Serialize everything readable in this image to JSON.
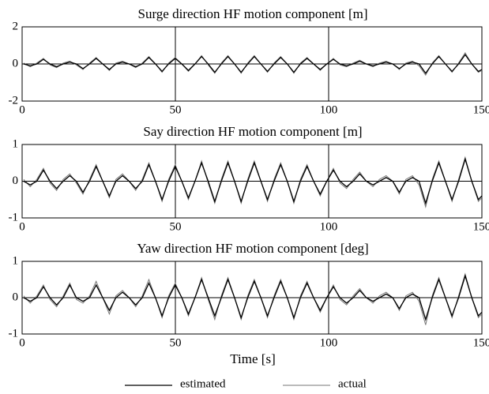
{
  "chart_data": [
    {
      "type": "line",
      "title": "Surge direction HF motion component [m]",
      "x": [
        0.5,
        2.65,
        4.8,
        6.95,
        9.1,
        11.25,
        13.4,
        15.55,
        17.7,
        19.85,
        22,
        24.15,
        26.3,
        28.45,
        30.6,
        32.75,
        34.9,
        37.05,
        39.2,
        41.35,
        43.5,
        45.65,
        47.8,
        49.95,
        52.1,
        54.25,
        56.4,
        58.55,
        60.7,
        62.85,
        65,
        67.15,
        69.3,
        71.45,
        73.6,
        75.75,
        77.9,
        80.05,
        82.2,
        84.35,
        86.5,
        88.65,
        90.8,
        92.95,
        95.1,
        97.25,
        99.4,
        101.55,
        103.7,
        105.85,
        108,
        110.15,
        112.3,
        114.45,
        116.6,
        118.75,
        120.9,
        123.05,
        125.2,
        127.35,
        129.5,
        131.65,
        133.8,
        135.95,
        138.1,
        140.25,
        142.4,
        144.55,
        146.7,
        148.85,
        150
      ],
      "series": [
        {
          "name": "estimated",
          "color": "#000000",
          "values": [
            0,
            -0.1,
            0,
            0.25,
            0,
            -0.15,
            0,
            0.1,
            0,
            -0.25,
            0,
            0.3,
            0,
            -0.3,
            0,
            0.1,
            0,
            -0.15,
            0,
            0.35,
            0,
            -0.4,
            0,
            0.3,
            0,
            -0.35,
            0,
            0.4,
            0,
            -0.45,
            0,
            0.4,
            0,
            -0.45,
            0,
            0.4,
            0,
            -0.4,
            0,
            0.35,
            0,
            -0.45,
            0,
            0.3,
            0,
            -0.3,
            0,
            0.25,
            0,
            -0.1,
            0,
            0.15,
            0,
            -0.1,
            0,
            0.1,
            0,
            -0.25,
            0,
            0.1,
            0,
            -0.5,
            0,
            0.4,
            0,
            -0.4,
            0,
            0.5,
            0,
            -0.4,
            -0.3
          ]
        },
        {
          "name": "actual",
          "color": "#777777",
          "values": [
            0.05,
            -0.15,
            0.05,
            0.3,
            -0.05,
            -0.2,
            0.05,
            0.15,
            -0.05,
            -0.3,
            0.05,
            0.35,
            0,
            -0.35,
            0.05,
            0.15,
            0,
            -0.2,
            0.05,
            0.4,
            0,
            -0.45,
            0.05,
            0.35,
            0,
            -0.4,
            0,
            0.45,
            -0.05,
            -0.5,
            0.05,
            0.45,
            0,
            -0.5,
            0.05,
            0.45,
            0,
            -0.45,
            0.05,
            0.4,
            0,
            -0.5,
            0.05,
            0.35,
            0,
            -0.35,
            0,
            0.3,
            -0.05,
            -0.15,
            0.05,
            0.2,
            0,
            -0.15,
            0.05,
            0.15,
            0,
            -0.3,
            0.05,
            0.15,
            -0.1,
            -0.6,
            0.05,
            0.45,
            0,
            -0.45,
            0.05,
            0.6,
            0,
            -0.45,
            -0.35
          ]
        }
      ],
      "xlim": [
        0,
        150
      ],
      "xticks": [
        0,
        50,
        100,
        150
      ],
      "ylim": [
        -2,
        2
      ],
      "yticks": [
        -2,
        0,
        2
      ],
      "grid": true
    },
    {
      "type": "line",
      "title": "Say direction HF motion component [m]",
      "x": [
        0.5,
        2.65,
        4.8,
        6.95,
        9.1,
        11.25,
        13.4,
        15.55,
        17.7,
        19.85,
        22,
        24.15,
        26.3,
        28.45,
        30.6,
        32.75,
        34.9,
        37.05,
        39.2,
        41.35,
        43.5,
        45.65,
        47.8,
        49.95,
        52.1,
        54.25,
        56.4,
        58.55,
        60.7,
        62.85,
        65,
        67.15,
        69.3,
        71.45,
        73.6,
        75.75,
        77.9,
        80.05,
        82.2,
        84.35,
        86.5,
        88.65,
        90.8,
        92.95,
        95.1,
        97.25,
        99.4,
        101.55,
        103.7,
        105.85,
        108,
        110.15,
        112.3,
        114.45,
        116.6,
        118.75,
        120.9,
        123.05,
        125.2,
        127.35,
        129.5,
        131.65,
        133.8,
        135.95,
        138.1,
        140.25,
        142.4,
        144.55,
        146.7,
        148.85,
        150
      ],
      "series": [
        {
          "name": "estimated",
          "color": "#000000",
          "values": [
            0,
            -0.1,
            0,
            0.3,
            0,
            -0.2,
            0,
            0.15,
            0,
            -0.3,
            0,
            0.4,
            0,
            -0.4,
            0,
            0.15,
            0,
            -0.2,
            0,
            0.45,
            0,
            -0.5,
            0,
            0.4,
            0,
            -0.45,
            0,
            0.5,
            0,
            -0.55,
            0,
            0.5,
            0,
            -0.55,
            0,
            0.5,
            0,
            -0.5,
            0,
            0.45,
            0,
            -0.55,
            0,
            0.4,
            0,
            -0.35,
            0,
            0.3,
            0,
            -0.15,
            0,
            0.2,
            0,
            -0.1,
            0,
            0.1,
            0,
            -0.3,
            0,
            0.1,
            0,
            -0.6,
            0,
            0.5,
            0,
            -0.5,
            0,
            0.6,
            0,
            -0.5,
            -0.4
          ]
        },
        {
          "name": "actual",
          "color": "#777777",
          "values": [
            0.05,
            -0.15,
            0.05,
            0.35,
            -0.05,
            -0.25,
            0.05,
            0.2,
            -0.05,
            -0.35,
            0.05,
            0.45,
            0,
            -0.45,
            0.05,
            0.2,
            0,
            -0.25,
            0.05,
            0.5,
            0,
            -0.55,
            0.05,
            0.45,
            0,
            -0.5,
            0,
            0.55,
            -0.05,
            -0.6,
            0.05,
            0.55,
            0,
            -0.6,
            0.05,
            0.55,
            0,
            -0.55,
            0.05,
            0.5,
            0,
            -0.6,
            0.05,
            0.45,
            0,
            -0.4,
            0,
            0.35,
            -0.05,
            -0.2,
            0.05,
            0.25,
            0,
            -0.15,
            0.05,
            0.15,
            0,
            -0.35,
            0.05,
            0.15,
            -0.1,
            -0.7,
            0.05,
            0.55,
            0,
            -0.55,
            0.05,
            0.65,
            0,
            -0.55,
            -0.45
          ]
        }
      ],
      "xlim": [
        0,
        150
      ],
      "xticks": [
        0,
        50,
        100,
        150
      ],
      "ylim": [
        -1,
        1
      ],
      "yticks": [
        -1,
        0,
        1
      ],
      "grid": true
    },
    {
      "type": "line",
      "title": "Yaw direction HF motion component [deg]",
      "xlabel": "Time [s]",
      "legend": "bottom",
      "x": [
        0.5,
        2.65,
        4.8,
        6.95,
        9.1,
        11.25,
        13.4,
        15.55,
        17.7,
        19.85,
        22,
        24.15,
        26.3,
        28.45,
        30.6,
        32.75,
        34.9,
        37.05,
        39.2,
        41.35,
        43.5,
        45.65,
        47.8,
        49.95,
        52.1,
        54.25,
        56.4,
        58.55,
        60.7,
        62.85,
        65,
        67.15,
        69.3,
        71.45,
        73.6,
        75.75,
        77.9,
        80.05,
        82.2,
        84.35,
        86.5,
        88.65,
        90.8,
        92.95,
        95.1,
        97.25,
        99.4,
        101.55,
        103.7,
        105.85,
        108,
        110.15,
        112.3,
        114.45,
        116.6,
        118.75,
        120.9,
        123.05,
        125.2,
        127.35,
        129.5,
        131.65,
        133.8,
        135.95,
        138.1,
        140.25,
        142.4,
        144.55,
        146.7,
        148.85,
        150
      ],
      "series": [
        {
          "name": "estimated",
          "color": "#000000",
          "values": [
            0,
            -0.1,
            0,
            0.3,
            0,
            -0.2,
            0,
            0.35,
            0,
            -0.1,
            0,
            0.35,
            0,
            -0.35,
            0,
            0.15,
            0,
            -0.2,
            0,
            0.4,
            0,
            -0.5,
            0,
            0.35,
            0,
            -0.45,
            0,
            0.5,
            0,
            -0.5,
            0,
            0.5,
            0,
            -0.55,
            0,
            0.45,
            0,
            -0.5,
            0,
            0.45,
            0,
            -0.55,
            0,
            0.4,
            0,
            -0.35,
            0,
            0.3,
            0,
            -0.15,
            0,
            0.2,
            0,
            -0.1,
            0,
            0.1,
            0,
            -0.3,
            0,
            0.1,
            0,
            -0.6,
            0,
            0.5,
            0,
            -0.5,
            0,
            0.6,
            0,
            -0.5,
            -0.4
          ]
        },
        {
          "name": "actual",
          "color": "#777777",
          "values": [
            0.05,
            -0.15,
            0.05,
            0.35,
            -0.05,
            -0.25,
            0.05,
            0.4,
            -0.05,
            -0.15,
            0.05,
            0.45,
            0,
            -0.45,
            0.05,
            0.2,
            0,
            -0.25,
            0.05,
            0.5,
            0,
            -0.55,
            0.05,
            0.4,
            0,
            -0.5,
            0,
            0.55,
            -0.05,
            -0.6,
            0.05,
            0.55,
            0,
            -0.6,
            0.05,
            0.5,
            0,
            -0.55,
            0.05,
            0.5,
            0,
            -0.6,
            0.05,
            0.45,
            0,
            -0.4,
            0,
            0.35,
            -0.05,
            -0.2,
            0.05,
            0.25,
            0,
            -0.15,
            0.05,
            0.15,
            0,
            -0.35,
            0.05,
            0.15,
            -0.1,
            -0.75,
            0.05,
            0.55,
            0,
            -0.55,
            0.05,
            0.65,
            0,
            -0.55,
            -0.45
          ]
        }
      ],
      "xlim": [
        0,
        150
      ],
      "xticks": [
        0,
        50,
        100,
        150
      ],
      "ylim": [
        -1,
        1
      ],
      "yticks": [
        -1,
        0,
        1
      ],
      "grid": true
    }
  ]
}
